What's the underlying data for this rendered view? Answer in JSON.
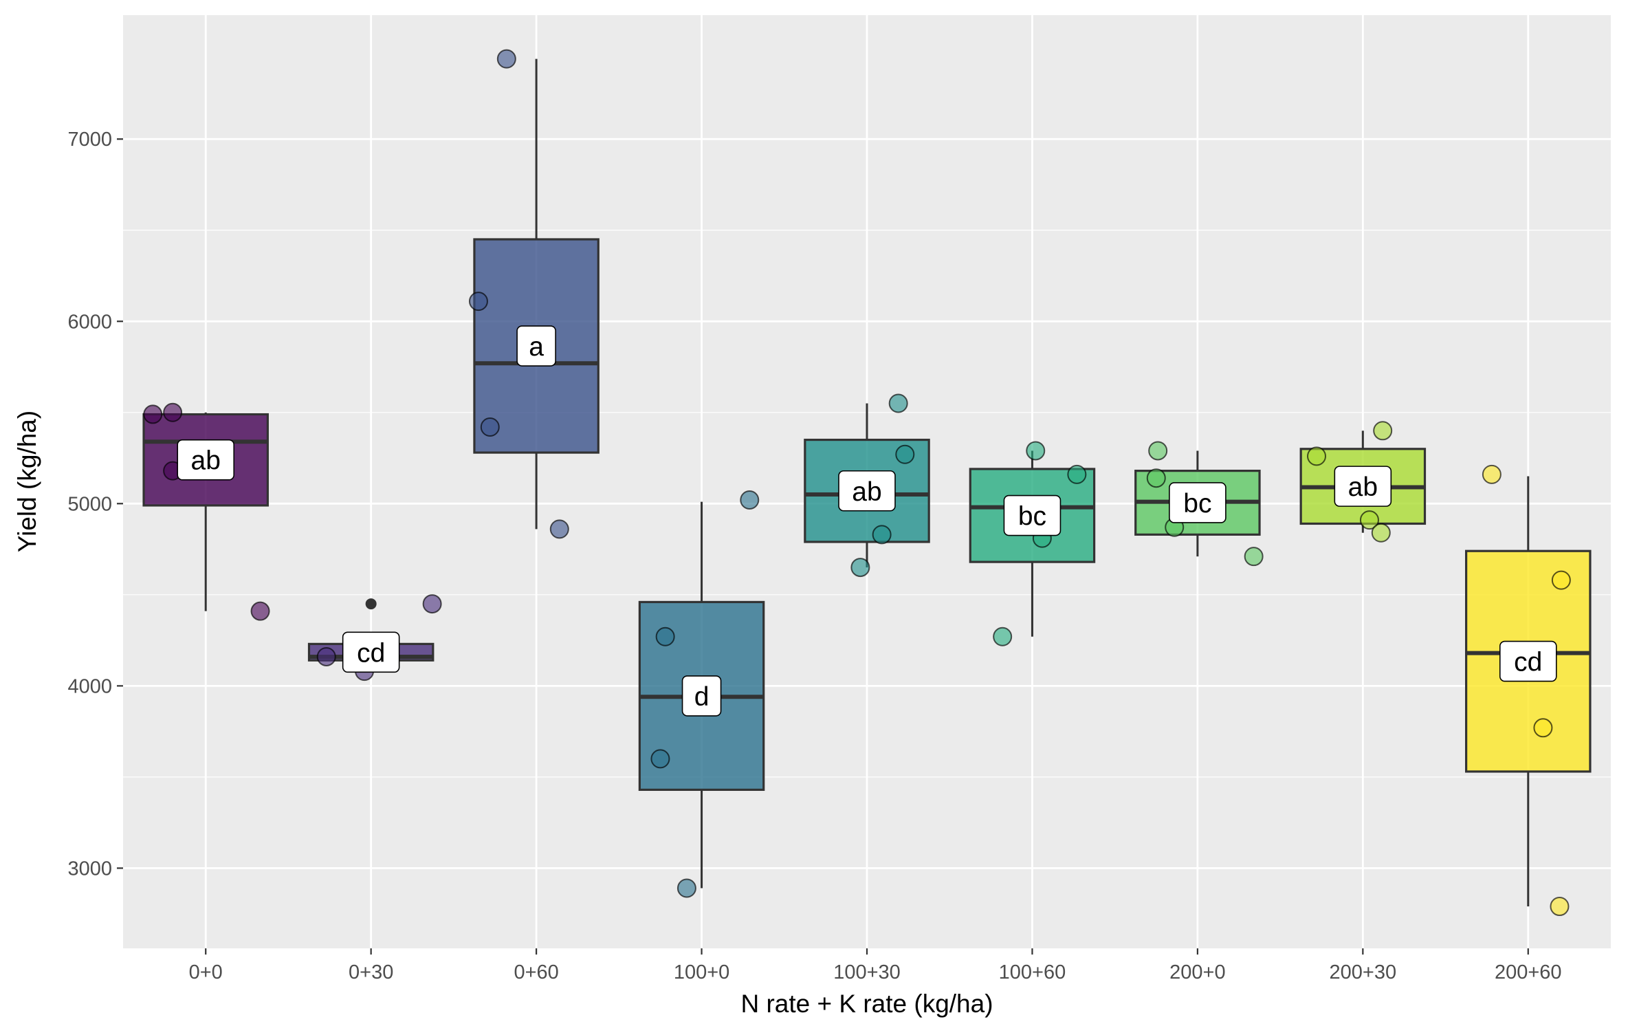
{
  "chart_data": {
    "type": "box",
    "title": "",
    "xlabel": "N rate + K rate (kg/ha)",
    "ylabel": "Yield (kg/ha)",
    "ylim": [
      2560,
      7680
    ],
    "yticks": [
      3000,
      4000,
      5000,
      6000,
      7000
    ],
    "grid": true,
    "legend": "none",
    "categories": [
      "0+0",
      "0+30",
      "0+60",
      "100+0",
      "100+30",
      "100+60",
      "200+0",
      "200+30",
      "200+60"
    ],
    "boxes": [
      {
        "category": "0+0",
        "label": "ab",
        "color": "#440154",
        "whisker_low": 4410,
        "q1": 4990,
        "median": 5340,
        "q3": 5490,
        "whisker_high": 5500,
        "outliers": []
      },
      {
        "category": "0+30",
        "label": "cd",
        "color": "#472D7B",
        "whisker_low": 4130,
        "q1": 4140,
        "median": 4160,
        "q3": 4230,
        "whisker_high": 4230,
        "outliers": [
          4450
        ]
      },
      {
        "category": "0+60",
        "label": "a",
        "color": "#3B528B",
        "whisker_low": 4860,
        "q1": 5280,
        "median": 5770,
        "q3": 6450,
        "whisker_high": 7440,
        "outliers": []
      },
      {
        "category": "100+0",
        "label": "d",
        "color": "#2C728E",
        "whisker_low": 2890,
        "q1": 3430,
        "median": 3940,
        "q3": 4460,
        "whisker_high": 5010,
        "outliers": []
      },
      {
        "category": "100+30",
        "label": "ab",
        "color": "#21908C",
        "whisker_low": 4650,
        "q1": 4790,
        "median": 5050,
        "q3": 5350,
        "whisker_high": 5550,
        "outliers": []
      },
      {
        "category": "100+60",
        "label": "bc",
        "color": "#27AD81",
        "whisker_low": 4270,
        "q1": 4680,
        "median": 4980,
        "q3": 5190,
        "whisker_high": 5290,
        "outliers": []
      },
      {
        "category": "200+0",
        "label": "bc",
        "color": "#5DC863",
        "whisker_low": 4710,
        "q1": 4830,
        "median": 5010,
        "q3": 5180,
        "whisker_high": 5290,
        "outliers": []
      },
      {
        "category": "200+30",
        "label": "ab",
        "color": "#AADC32",
        "whisker_low": 4840,
        "q1": 4890,
        "median": 5090,
        "q3": 5300,
        "whisker_high": 5400,
        "outliers": []
      },
      {
        "category": "200+60",
        "label": "cd",
        "color": "#FDE725",
        "whisker_low": 2790,
        "q1": 3530,
        "median": 4180,
        "q3": 4740,
        "whisker_high": 5150,
        "outliers": []
      }
    ],
    "points": [
      {
        "category": "0+0",
        "x_offset": -0.32,
        "y": 5490
      },
      {
        "category": "0+0",
        "x_offset": -0.2,
        "y": 5500
      },
      {
        "category": "0+0",
        "x_offset": -0.2,
        "y": 5180
      },
      {
        "category": "0+0",
        "x_offset": 0.33,
        "y": 4410
      },
      {
        "category": "0+30",
        "x_offset": -0.27,
        "y": 4160
      },
      {
        "category": "0+30",
        "x_offset": -0.04,
        "y": 4080
      },
      {
        "category": "0+30",
        "x_offset": 0.37,
        "y": 4450
      },
      {
        "category": "0+30",
        "x_offset": 0.0,
        "y": 4170
      },
      {
        "category": "0+60",
        "x_offset": -0.35,
        "y": 6110
      },
      {
        "category": "0+60",
        "x_offset": -0.18,
        "y": 7440
      },
      {
        "category": "0+60",
        "x_offset": -0.28,
        "y": 5420
      },
      {
        "category": "0+60",
        "x_offset": 0.14,
        "y": 4860
      },
      {
        "category": "100+0",
        "x_offset": -0.22,
        "y": 4270
      },
      {
        "category": "100+0",
        "x_offset": -0.25,
        "y": 3600
      },
      {
        "category": "100+0",
        "x_offset": -0.09,
        "y": 2890
      },
      {
        "category": "100+0",
        "x_offset": 0.29,
        "y": 5020
      },
      {
        "category": "100+30",
        "x_offset": -0.04,
        "y": 4650
      },
      {
        "category": "100+30",
        "x_offset": 0.19,
        "y": 5550
      },
      {
        "category": "100+30",
        "x_offset": 0.23,
        "y": 5270
      },
      {
        "category": "100+30",
        "x_offset": 0.09,
        "y": 4830
      },
      {
        "category": "100+60",
        "x_offset": -0.18,
        "y": 4270
      },
      {
        "category": "100+60",
        "x_offset": 0.02,
        "y": 5290
      },
      {
        "category": "100+60",
        "x_offset": 0.27,
        "y": 5160
      },
      {
        "category": "100+60",
        "x_offset": 0.06,
        "y": 4810
      },
      {
        "category": "200+0",
        "x_offset": -0.24,
        "y": 5290
      },
      {
        "category": "200+0",
        "x_offset": -0.25,
        "y": 5140
      },
      {
        "category": "200+0",
        "x_offset": -0.14,
        "y": 4870
      },
      {
        "category": "200+0",
        "x_offset": 0.34,
        "y": 4710
      },
      {
        "category": "200+30",
        "x_offset": -0.28,
        "y": 5260
      },
      {
        "category": "200+30",
        "x_offset": 0.12,
        "y": 5400
      },
      {
        "category": "200+30",
        "x_offset": 0.04,
        "y": 4910
      },
      {
        "category": "200+30",
        "x_offset": 0.11,
        "y": 4840
      },
      {
        "category": "200+60",
        "x_offset": -0.22,
        "y": 5160
      },
      {
        "category": "200+60",
        "x_offset": 0.2,
        "y": 4580
      },
      {
        "category": "200+60",
        "x_offset": 0.09,
        "y": 3770
      },
      {
        "category": "200+60",
        "x_offset": 0.19,
        "y": 2790
      }
    ]
  }
}
